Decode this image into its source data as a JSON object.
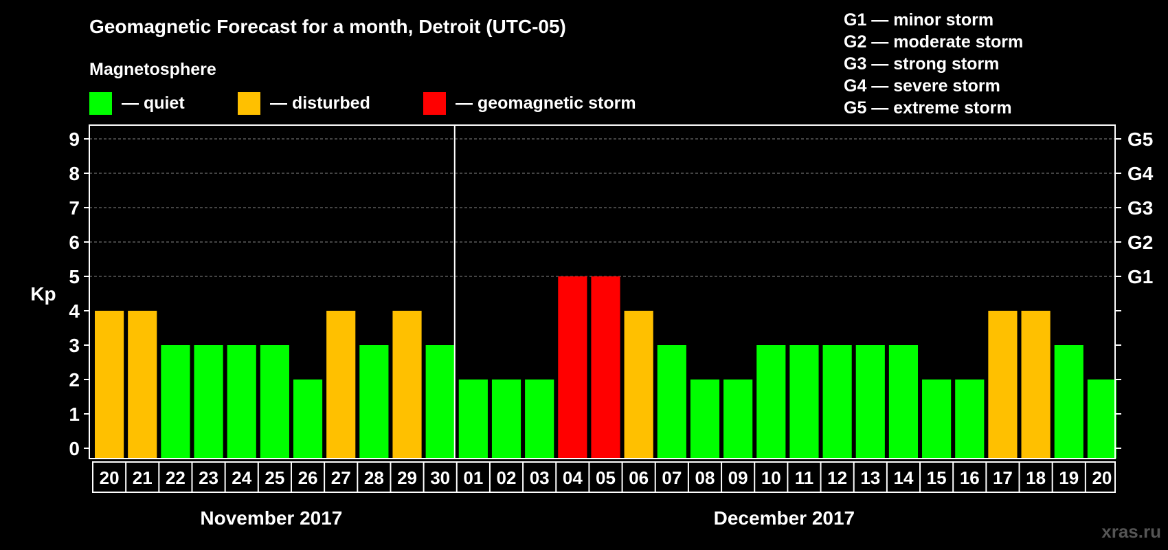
{
  "chart_data": {
    "type": "bar",
    "title": "Geomagnetic Forecast for a month, Detroit (UTC-05)",
    "subtitle": "Magnetosphere",
    "ylabel": "Kp",
    "ylim": [
      0,
      9
    ],
    "yticks": [
      "0",
      "1",
      "2",
      "3",
      "4",
      "5",
      "6",
      "7",
      "8",
      "9"
    ],
    "right_ticks": [
      {
        "value": 5,
        "label": "G1"
      },
      {
        "value": 6,
        "label": "G2"
      },
      {
        "value": 7,
        "label": "G3"
      },
      {
        "value": 8,
        "label": "G4"
      },
      {
        "value": 9,
        "label": "G5"
      }
    ],
    "categories": [
      "20",
      "21",
      "22",
      "23",
      "24",
      "25",
      "26",
      "27",
      "28",
      "29",
      "30",
      "01",
      "02",
      "03",
      "04",
      "05",
      "06",
      "07",
      "08",
      "09",
      "10",
      "11",
      "12",
      "13",
      "14",
      "15",
      "16",
      "17",
      "18",
      "19",
      "20"
    ],
    "values": [
      4,
      4,
      3,
      3,
      3,
      3,
      2,
      4,
      3,
      4,
      3,
      2,
      2,
      2,
      5,
      5,
      4,
      3,
      2,
      2,
      3,
      3,
      3,
      3,
      3,
      2,
      2,
      4,
      4,
      3,
      2
    ],
    "months": [
      {
        "label": "November 2017",
        "start": 0,
        "end": 10
      },
      {
        "label": "December 2017",
        "start": 11,
        "end": 30
      }
    ],
    "legend": [
      {
        "label": "— quiet",
        "color": "#00ff00"
      },
      {
        "label": "— disturbed",
        "color": "#ffc000"
      },
      {
        "label": "— geomagnetic storm",
        "color": "#ff0000"
      }
    ],
    "storm_scale": [
      "G1 — minor storm",
      "G2 — moderate storm",
      "G3 — strong storm",
      "G4 — severe storm",
      "G5 — extreme storm"
    ],
    "watermark": "xras.ru"
  }
}
